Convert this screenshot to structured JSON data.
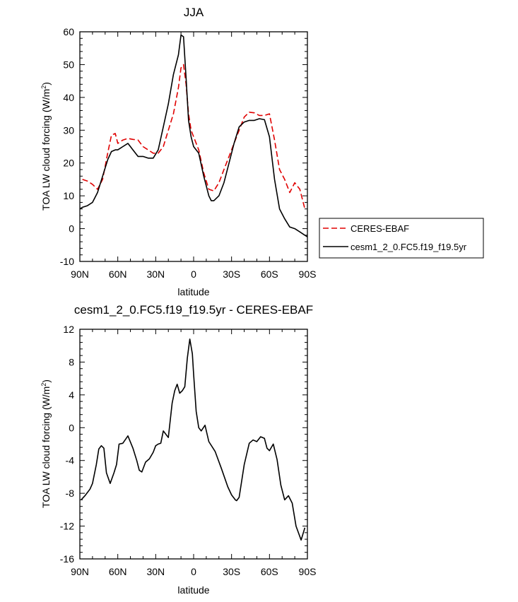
{
  "chart_data": [
    {
      "type": "line",
      "title": "JJA",
      "xlabel": "latitude",
      "ylabel": "TOA LW cloud forcing (W/m",
      "ylabel_sup": "2",
      "ylabel_close": ")",
      "xlim": [
        90,
        -90
      ],
      "ylim": [
        -10,
        60
      ],
      "xticks": [
        90,
        60,
        30,
        0,
        -30,
        -60,
        -90
      ],
      "xtick_labels": [
        "90N",
        "60N",
        "30N",
        "0",
        "30S",
        "60S",
        "90S"
      ],
      "yticks": [
        -10,
        0,
        10,
        20,
        30,
        40,
        50,
        60
      ],
      "ytick_labels": [
        "-10",
        "0",
        "10",
        "20",
        "30",
        "40",
        "50",
        "60"
      ],
      "legend_position": "right",
      "colors": {
        "obs": "#e00000",
        "model": "#000000"
      },
      "series": [
        {
          "name": "CERES-EBAF",
          "style": "dashed",
          "x": [
            88,
            84,
            80,
            76,
            72,
            68,
            65,
            62,
            60,
            56,
            52,
            48,
            44,
            40,
            36,
            32,
            28,
            24,
            20,
            16,
            12,
            10,
            8,
            6,
            4,
            2,
            0,
            -4,
            -8,
            -12,
            -16,
            -20,
            -24,
            -28,
            -32,
            -36,
            -40,
            -44,
            -48,
            -52,
            -56,
            -60,
            -64,
            -68,
            -72,
            -76,
            -80,
            -84,
            -88
          ],
          "values": [
            15,
            14.5,
            13.5,
            12,
            15,
            23,
            28.5,
            29,
            26,
            27,
            27.5,
            27.2,
            27,
            25,
            24,
            23,
            23,
            25,
            30,
            35,
            43,
            49,
            50,
            44,
            35,
            30,
            28,
            24,
            17,
            12,
            11.5,
            14,
            18,
            22,
            26,
            30,
            34,
            35.5,
            35.3,
            34.5,
            34.5,
            35,
            27,
            18,
            15,
            11,
            14,
            12,
            6
          ]
        },
        {
          "name": "cesm1_2_0.FC5.f19_f19.5yr",
          "style": "solid",
          "x": [
            90,
            88,
            84,
            80,
            76,
            72,
            68,
            65,
            62,
            60,
            58,
            56,
            52,
            48,
            44,
            40,
            36,
            32,
            28,
            24,
            20,
            16,
            12,
            10,
            8,
            6,
            4,
            2,
            0,
            -4,
            -8,
            -12,
            -14,
            -16,
            -20,
            -24,
            -28,
            -32,
            -36,
            -40,
            -44,
            -48,
            -52,
            -56,
            -60,
            -64,
            -68,
            -72,
            -76,
            -80,
            -84,
            -88,
            -90
          ],
          "values": [
            6,
            6.5,
            7,
            8,
            11,
            16,
            21,
            23.5,
            24,
            24,
            24.5,
            25,
            26,
            24,
            22,
            22,
            21.5,
            21.5,
            24,
            31,
            38,
            47,
            53,
            59,
            58.5,
            46,
            33,
            28,
            25,
            23,
            16,
            10,
            8.5,
            8.5,
            10,
            14,
            20,
            26,
            31,
            32.5,
            33,
            33,
            33.5,
            33.2,
            28,
            15,
            6,
            3,
            0.5,
            0,
            -1,
            -2,
            -2.5
          ]
        }
      ]
    },
    {
      "type": "line",
      "title": "cesm1_2_0.FC5.f19_f19.5yr - CERES-EBAF",
      "xlabel": "latitude",
      "ylabel": "TOA LW cloud forcing (W/m",
      "ylabel_sup": "2",
      "ylabel_close": ")",
      "xlim": [
        90,
        -90
      ],
      "ylim": [
        -16,
        12
      ],
      "xticks": [
        90,
        60,
        30,
        0,
        -30,
        -60,
        -90
      ],
      "xtick_labels": [
        "90N",
        "60N",
        "30N",
        "0",
        "30S",
        "60S",
        "90S"
      ],
      "yticks": [
        -16,
        -12,
        -8,
        -4,
        0,
        4,
        8,
        12
      ],
      "ytick_labels": [
        "-16",
        "-12",
        "-8",
        "-4",
        "0",
        "4",
        "8",
        "12"
      ],
      "series": [
        {
          "style": "solid",
          "x": [
            89,
            86,
            82,
            80,
            77,
            75,
            73,
            71,
            69,
            66,
            63,
            61,
            59,
            56,
            52,
            48,
            45,
            43,
            41,
            38,
            35,
            32,
            30,
            28,
            26,
            24,
            20,
            17,
            15,
            13,
            11,
            9,
            7,
            5,
            3,
            1,
            0,
            -2,
            -4,
            -6,
            -9,
            -12,
            -17,
            -22,
            -27,
            -30,
            -33,
            -34,
            -36,
            -40,
            -44,
            -47,
            -50,
            -53,
            -56,
            -58,
            -60,
            -63,
            -66,
            -69,
            -72,
            -75,
            -78,
            -81,
            -85,
            -88
          ],
          "values": [
            -8.8,
            -8.3,
            -7.5,
            -6.8,
            -4.5,
            -2.6,
            -2.2,
            -2.5,
            -5.5,
            -6.8,
            -5.5,
            -4.5,
            -2,
            -1.9,
            -1,
            -2.5,
            -4,
            -5.2,
            -5.4,
            -4.2,
            -3.8,
            -3,
            -2.2,
            -2,
            -1.9,
            -0.4,
            -1.2,
            3,
            4.5,
            5.3,
            4.2,
            4.5,
            5,
            8.5,
            10.8,
            9,
            6.5,
            2,
            0,
            -0.4,
            0.3,
            -1.7,
            -2.9,
            -5,
            -7.2,
            -8.2,
            -8.8,
            -8.9,
            -8.5,
            -4.5,
            -1.9,
            -1.5,
            -1.7,
            -1.1,
            -1.3,
            -2.5,
            -2.8,
            -2,
            -3.9,
            -7,
            -8.8,
            -8.3,
            -9.2,
            -12,
            -13.7,
            -12.2
          ]
        }
      ]
    }
  ]
}
